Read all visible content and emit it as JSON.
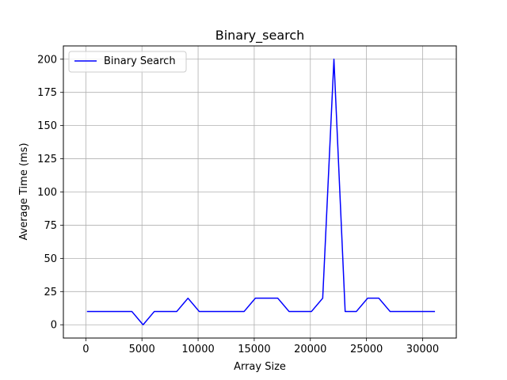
{
  "chart_data": {
    "type": "line",
    "title": "Binary_search",
    "xlabel": "Array Size",
    "ylabel": "Average Time (ms)",
    "xlim": [
      -2000,
      33000
    ],
    "ylim": [
      -10,
      210
    ],
    "xticks": [
      0,
      5000,
      10000,
      15000,
      20000,
      25000,
      30000
    ],
    "yticks": [
      0,
      25,
      50,
      75,
      100,
      125,
      150,
      175,
      200
    ],
    "grid": true,
    "legend_position": "upper-left",
    "series": [
      {
        "name": "Binary Search",
        "color": "#0000ff",
        "x": [
          100,
          1100,
          2100,
          3100,
          4100,
          5100,
          6100,
          7100,
          8100,
          9100,
          10100,
          11100,
          12100,
          13100,
          14100,
          15100,
          16100,
          17100,
          18100,
          19100,
          20100,
          21100,
          22100,
          23100,
          24100,
          25100,
          26100,
          27100,
          28100,
          29100,
          30100,
          31100
        ],
        "y": [
          10,
          10,
          10,
          10,
          10,
          0,
          10,
          10,
          10,
          20,
          10,
          10,
          10,
          10,
          10,
          20,
          20,
          20,
          10,
          10,
          10,
          20,
          200,
          10,
          10,
          20,
          20,
          10,
          10,
          10,
          10,
          10
        ]
      }
    ]
  }
}
